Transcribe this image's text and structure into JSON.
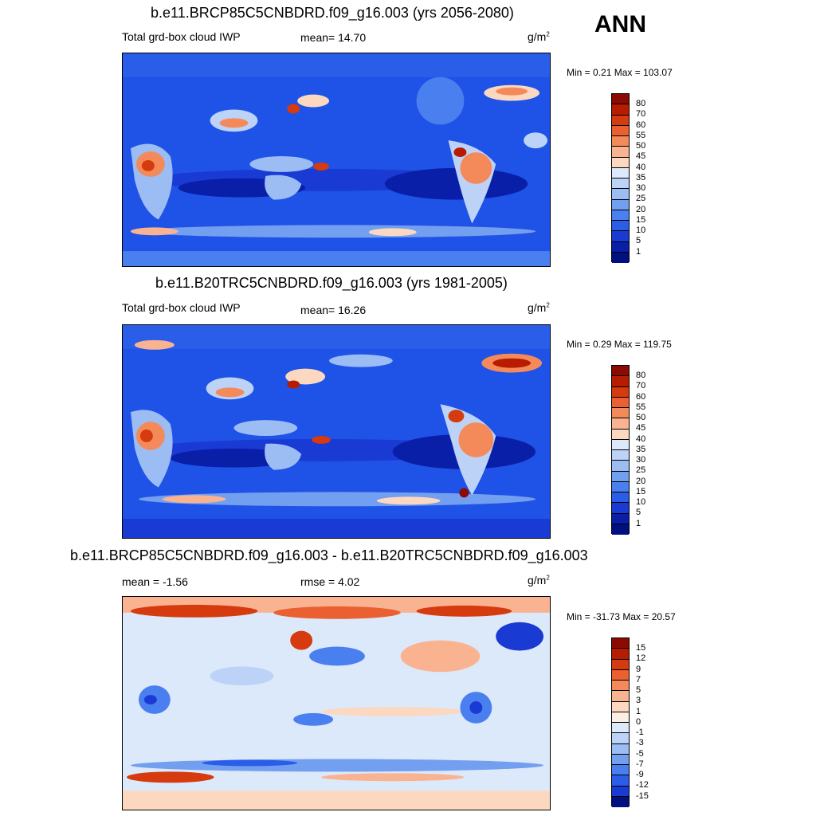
{
  "season": "ANN",
  "panels": [
    {
      "title": "b.e11.BRCP85C5CNBDRD.f09_g16.003 (yrs 2056-2080)",
      "left_label": "Total grd-box cloud IWP",
      "center_label": "mean=  14.70",
      "units": "g/m",
      "units_exp": "2",
      "minmax": "Min =   0.21 Max = 103.07",
      "colorbar_labels": [
        "80",
        "70",
        "60",
        "55",
        "50",
        "45",
        "40",
        "35",
        "30",
        "25",
        "20",
        "15",
        "10",
        "5",
        "1"
      ]
    },
    {
      "title": "b.e11.B20TRC5CNBDRD.f09_g16.003 (yrs 1981-2005)",
      "left_label": "Total grd-box cloud IWP",
      "center_label": "mean=  16.26",
      "units": "g/m",
      "units_exp": "2",
      "minmax": "Min =   0.29 Max = 119.75",
      "colorbar_labels": [
        "80",
        "70",
        "60",
        "55",
        "50",
        "45",
        "40",
        "35",
        "30",
        "25",
        "20",
        "15",
        "10",
        "5",
        "1"
      ]
    },
    {
      "title": "b.e11.BRCP85C5CNBDRD.f09_g16.003 - b.e11.B20TRC5CNBDRD.f09_g16.003",
      "left_label": "mean =  -1.56",
      "center_label": "rmse =   4.02",
      "units": "g/m",
      "units_exp": "2",
      "minmax": "Min = -31.73 Max =  20.57",
      "colorbar_labels": [
        "15",
        "12",
        "9",
        "7",
        "5",
        "3",
        "1",
        "0",
        "-1",
        "-3",
        "-5",
        "-7",
        "-9",
        "-12",
        "-15"
      ]
    }
  ],
  "colors": {
    "abs_scale": [
      "#8c0a00",
      "#b81c00",
      "#d63a0f",
      "#ea6030",
      "#f48a5a",
      "#f9b391",
      "#fcd8c0",
      "#dce9fa",
      "#bcd3f7",
      "#9bbdf4",
      "#729ff0",
      "#4a7ff0",
      "#2a5ee8",
      "#1a3ad4",
      "#0a1fa8",
      "#001080"
    ],
    "diff_scale": [
      "#8c0a00",
      "#b81c00",
      "#d63a0f",
      "#ea6030",
      "#f48a5a",
      "#f9b391",
      "#fcd8c0",
      "#fdeee4",
      "#dce9fa",
      "#bcd3f7",
      "#9bbdf4",
      "#729ff0",
      "#4a7ff0",
      "#2a5ee8",
      "#1a3ad4",
      "#001080"
    ],
    "map_base": "#1f52e6",
    "diff_base": "#dce9fa"
  }
}
